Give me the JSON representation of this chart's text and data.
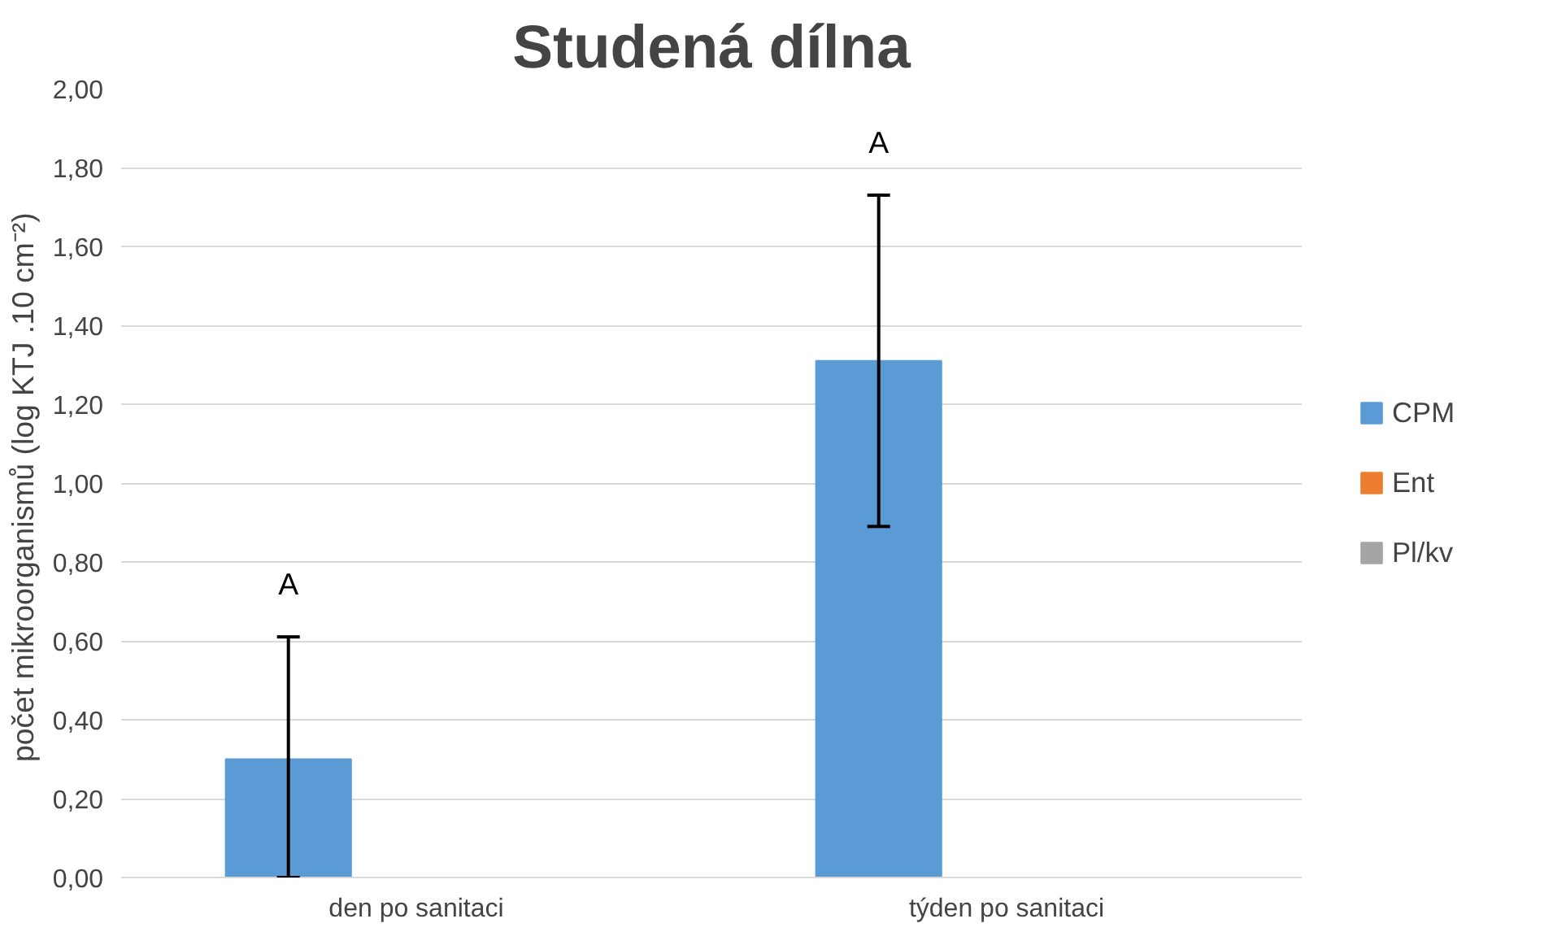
{
  "chart_data": {
    "type": "bar",
    "title": "Studená dílna",
    "ylabel": "počet mikroorganismů (log  KTJ .10 cm⁻²)",
    "categories": [
      "den po sanitaci",
      "týden po sanitaci"
    ],
    "series": [
      {
        "name": "CPM",
        "color": "#5b9bd5",
        "values": [
          0.3,
          1.31
        ],
        "errors": [
          [
            0,
            0.61
          ],
          [
            0.89,
            1.73
          ]
        ]
      },
      {
        "name": "Ent",
        "color": "#ed7d31",
        "values": [
          null,
          null
        ]
      },
      {
        "name": "Pl/kv",
        "color": "#a5a5a5",
        "values": [
          null,
          null
        ]
      }
    ],
    "ylim": [
      0,
      2
    ],
    "yticks": [
      {
        "value": 0,
        "label": "0,00"
      },
      {
        "value": 0.2,
        "label": "0,20"
      },
      {
        "value": 0.4,
        "label": "0,40"
      },
      {
        "value": 0.6,
        "label": "0,60"
      },
      {
        "value": 0.8,
        "label": "0,80"
      },
      {
        "value": 1.0,
        "label": "1,00"
      },
      {
        "value": 1.2,
        "label": "1,20"
      },
      {
        "value": 1.4,
        "label": "1,40"
      },
      {
        "value": 1.6,
        "label": "1,60"
      },
      {
        "value": 1.8,
        "label": "1,80"
      },
      {
        "value": 2.0,
        "label": "2,00"
      }
    ],
    "annotations": [
      "A",
      "A"
    ],
    "grid": "y",
    "legend": "right"
  }
}
